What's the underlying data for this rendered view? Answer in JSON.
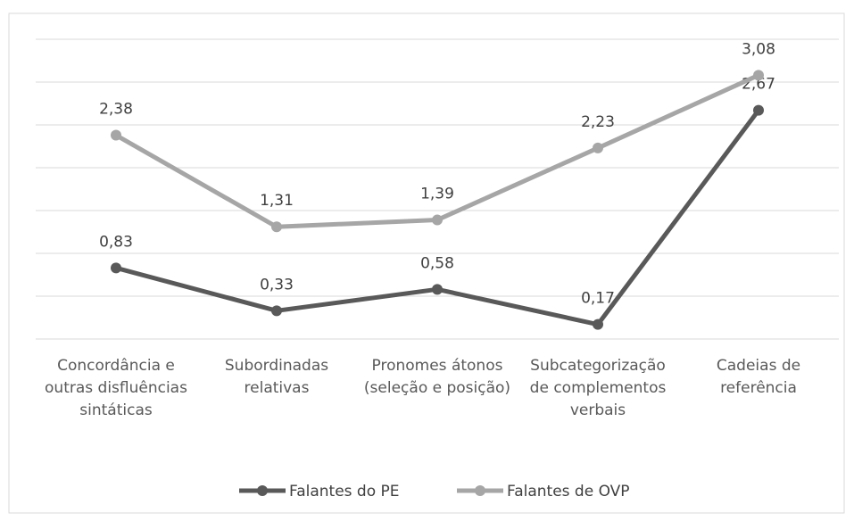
{
  "chart_data": {
    "type": "line",
    "categories": [
      "Concordância e outras disfluências sintáticas",
      "Subordinadas relativas",
      "Pronomes átonos (seleção e posição)",
      "Subcategorização de complementos verbais",
      "Cadeias de referência"
    ],
    "series": [
      {
        "name": "Falantes do PE",
        "color": "#595959",
        "values": [
          0.83,
          0.33,
          0.58,
          0.17,
          2.67
        ],
        "value_labels": [
          "0,83",
          "0,33",
          "0,58",
          "0,17",
          "2,67"
        ]
      },
      {
        "name": "Falantes de OVP",
        "color": "#a6a6a6",
        "values": [
          2.38,
          1.31,
          1.39,
          2.23,
          3.08
        ],
        "value_labels": [
          "2,38",
          "1,31",
          "1,39",
          "2,23",
          "3,08"
        ]
      }
    ],
    "ylim": [
      0,
      3.5
    ],
    "yticks": [
      0,
      0.5,
      1,
      1.5,
      2,
      2.5,
      3,
      3.5
    ],
    "grid": true,
    "legend": "bottom"
  }
}
